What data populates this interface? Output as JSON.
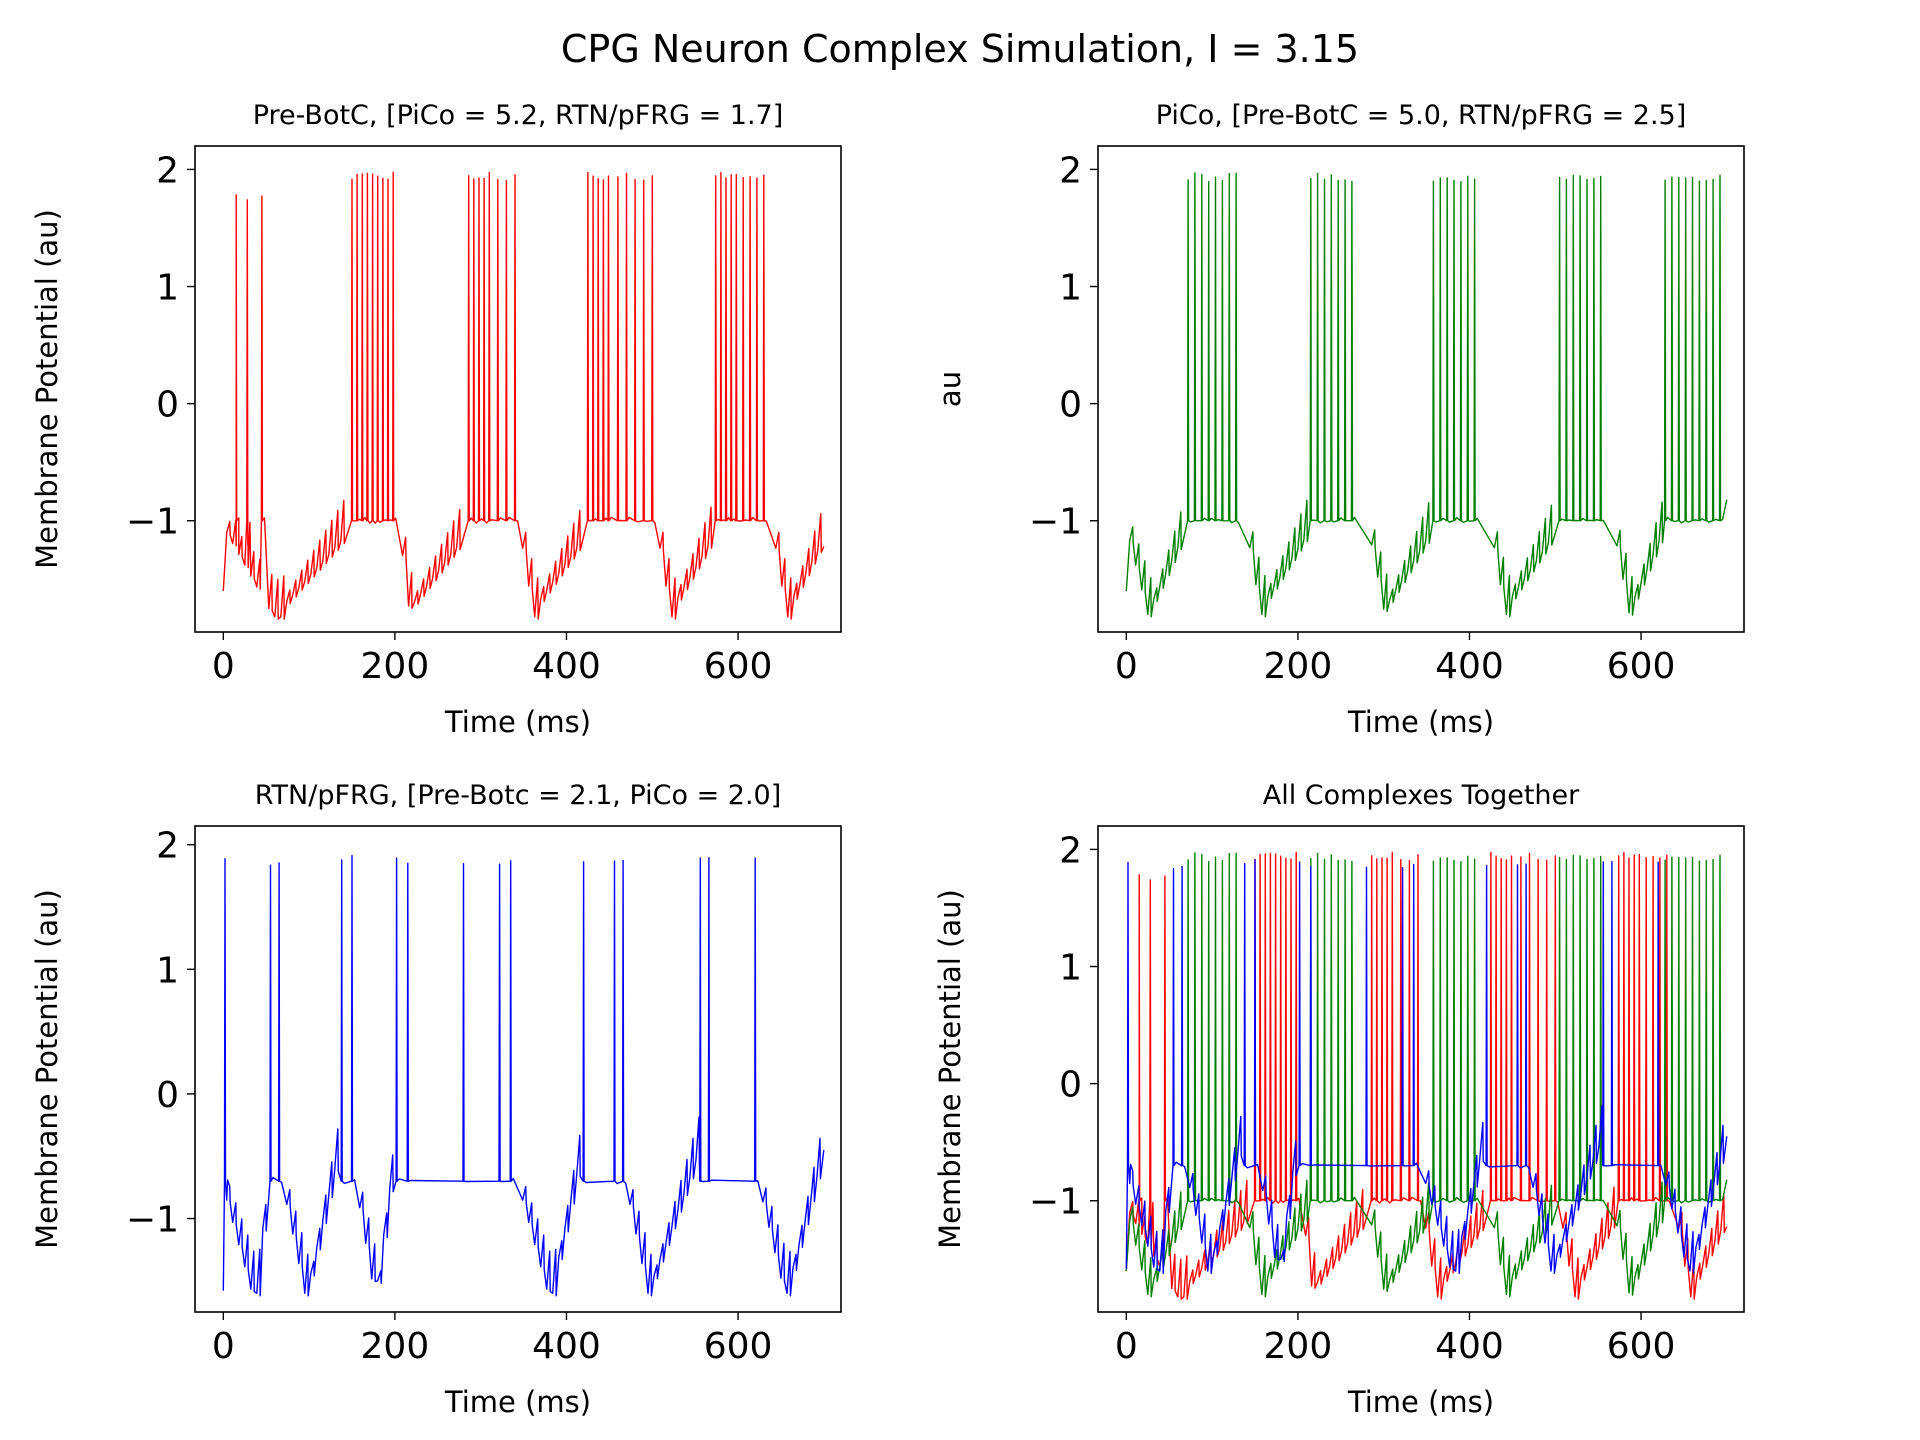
{
  "figure": {
    "suptitle": "CPG Neuron Complex Simulation, I = 3.15",
    "colors": {
      "prebotc": "#ff0000",
      "pico": "#008000",
      "rtn": "#0000ff"
    }
  },
  "chart_data": [
    {
      "type": "line",
      "title": "Pre-BotC, [PiCo = 5.2, RTN/pFRG = 1.7]",
      "xlabel": "Time (ms)",
      "ylabel": "Membrane Potential (au)",
      "xlim": [
        -33,
        720
      ],
      "ylim": [
        -1.95,
        2.2
      ],
      "xticks": [
        0,
        200,
        400,
        600
      ],
      "xtick_labels": [
        "0",
        "200",
        "400",
        "600"
      ],
      "yticks": [
        -1,
        0,
        1,
        2
      ],
      "ytick_labels": [
        "−1",
        "0",
        "1",
        "2"
      ],
      "grid": false,
      "series": [
        {
          "color": "#ff0000",
          "bursts": [
            {
              "spikes": [
                5,
                15,
                28,
                45
              ],
              "peak": 1.8
            },
            {
              "spikes": [
                150,
                156,
                162,
                168,
                174,
                180,
                186,
                192,
                198
              ],
              "peak": 1.98
            },
            {
              "spikes": [
                286,
                292,
                298,
                304,
                310,
                320,
                330,
                340
              ],
              "peak": 1.98
            },
            {
              "spikes": [
                425,
                431,
                437,
                443,
                449,
                460,
                470,
                480,
                490,
                500
              ],
              "peak": 1.98
            },
            {
              "spikes": [
                574,
                580,
                586,
                592,
                598,
                606,
                614,
                622,
                630
              ],
              "peak": 1.98
            }
          ],
          "troughs": [
            [
              0,
              70,
              140
            ],
            [
              205,
              220,
              280
            ],
            [
              345,
              365,
              420
            ],
            [
              505,
              525,
              570
            ],
            [
              640,
              660,
              700
            ]
          ],
          "trough_min": -1.72,
          "trough_end": -1.15,
          "plateau": -0.95,
          "start": -1.6,
          "end_value": -1.22
        }
      ]
    },
    {
      "type": "line",
      "title": "PiCo, [Pre-BotC = 5.0, RTN/pFRG = 2.5]",
      "xlabel": "Time (ms)",
      "ylabel": "au",
      "xlim": [
        -33,
        720
      ],
      "ylim": [
        -1.95,
        2.2
      ],
      "xticks": [
        0,
        200,
        400,
        600
      ],
      "xtick_labels": [
        "0",
        "200",
        "400",
        "600"
      ],
      "yticks": [
        -1,
        0,
        1,
        2
      ],
      "ytick_labels": [
        "−1",
        "0",
        "1",
        "2"
      ],
      "grid": false,
      "series": [
        {
          "color": "#008000",
          "bursts": [
            {
              "spikes": [
                72,
                80,
                88,
                96,
                104,
                112,
                120,
                128
              ],
              "peak": 1.97
            },
            {
              "spikes": [
                215,
                223,
                231,
                239,
                247,
                255,
                263
              ],
              "peak": 1.97
            },
            {
              "spikes": [
                358,
                366,
                374,
                382,
                390,
                398,
                406
              ],
              "peak": 1.97
            },
            {
              "spikes": [
                505,
                513,
                521,
                529,
                537,
                545,
                553
              ],
              "peak": 1.97
            },
            {
              "spikes": [
                628,
                636,
                644,
                652,
                660,
                668,
                676,
                684,
                692
              ],
              "peak": 1.97
            }
          ],
          "troughs": [
            [
              0,
              30,
              68
            ],
            [
              140,
              160,
              212
            ],
            [
              282,
              305,
              355
            ],
            [
              425,
              445,
              500
            ],
            [
              568,
              590,
              625
            ]
          ],
          "trough_min": -1.7,
          "trough_end": -1.1,
          "plateau": -0.95,
          "start": -1.6,
          "end_value": -0.82
        }
      ]
    },
    {
      "type": "line",
      "title": "RTN/pFRG, [Pre-Botc = 2.1, PiCo = 2.0]",
      "xlabel": "Time (ms)",
      "ylabel": "Membrane Potential (au)",
      "xlim": [
        -33,
        720
      ],
      "ylim": [
        -1.75,
        2.15
      ],
      "xticks": [
        0,
        200,
        400,
        600
      ],
      "xtick_labels": [
        "0",
        "200",
        "400",
        "600"
      ],
      "yticks": [
        -1,
        0,
        1,
        2
      ],
      "ytick_labels": [
        "−1",
        "0",
        "1",
        "2"
      ],
      "grid": false,
      "series": [
        {
          "color": "#0000ff",
          "bursts": [
            {
              "spikes": [
                2
              ],
              "peak": 1.95
            },
            {
              "spikes": [
                55,
                65
              ],
              "peak": 1.9
            },
            {
              "spikes": [
                138,
                150
              ],
              "peak": 1.92
            },
            {
              "spikes": [
                202,
                215
              ],
              "peak": 1.92
            },
            {
              "spikes": [
                280,
                322,
                335
              ],
              "peak": 1.92
            },
            {
              "spikes": [
                420,
                456,
                466
              ],
              "peak": 1.92
            },
            {
              "spikes": [
                556,
                566,
                620
              ],
              "peak": 1.9
            }
          ],
          "troughs": [
            [
              0,
              40,
              55
            ],
            [
              70,
              100,
              135
            ],
            [
              155,
              180,
              200
            ],
            [
              345,
              385,
              418
            ],
            [
              470,
              500,
              555
            ],
            [
              625,
              660,
              700
            ]
          ],
          "trough_min": -1.5,
          "trough_end": -0.45,
          "plateau": -0.65,
          "start": -1.58,
          "end_value": -0.45
        }
      ]
    },
    {
      "type": "line",
      "title": "All Complexes Together",
      "xlabel": "Time (ms)",
      "ylabel": "Membrane Potential (au)",
      "xlim": [
        -33,
        720
      ],
      "ylim": [
        -1.95,
        2.2
      ],
      "xticks": [
        0,
        200,
        400,
        600
      ],
      "xtick_labels": [
        "0",
        "200",
        "400",
        "600"
      ],
      "yticks": [
        -1,
        0,
        1,
        2
      ],
      "ytick_labels": [
        "−1",
        "0",
        "1",
        "2"
      ],
      "grid": false,
      "series_refs": [
        0,
        1,
        2
      ]
    }
  ]
}
